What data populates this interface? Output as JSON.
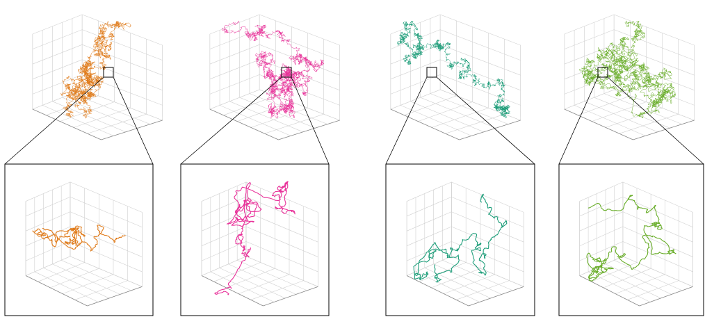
{
  "figure": {
    "background": "#ffffff",
    "grid_color": "#d0d0d0",
    "axis_color": "#888888",
    "frame_color": "#000000",
    "panels": [
      {
        "id": "orange",
        "color": "#e07b1a",
        "seed": 11
      },
      {
        "id": "pink",
        "color": "#e8339a",
        "seed": 23
      },
      {
        "id": "teal",
        "color": "#1e9e7a",
        "seed": 37
      },
      {
        "id": "green",
        "color": "#6aae2b",
        "seed": 51
      }
    ]
  }
}
